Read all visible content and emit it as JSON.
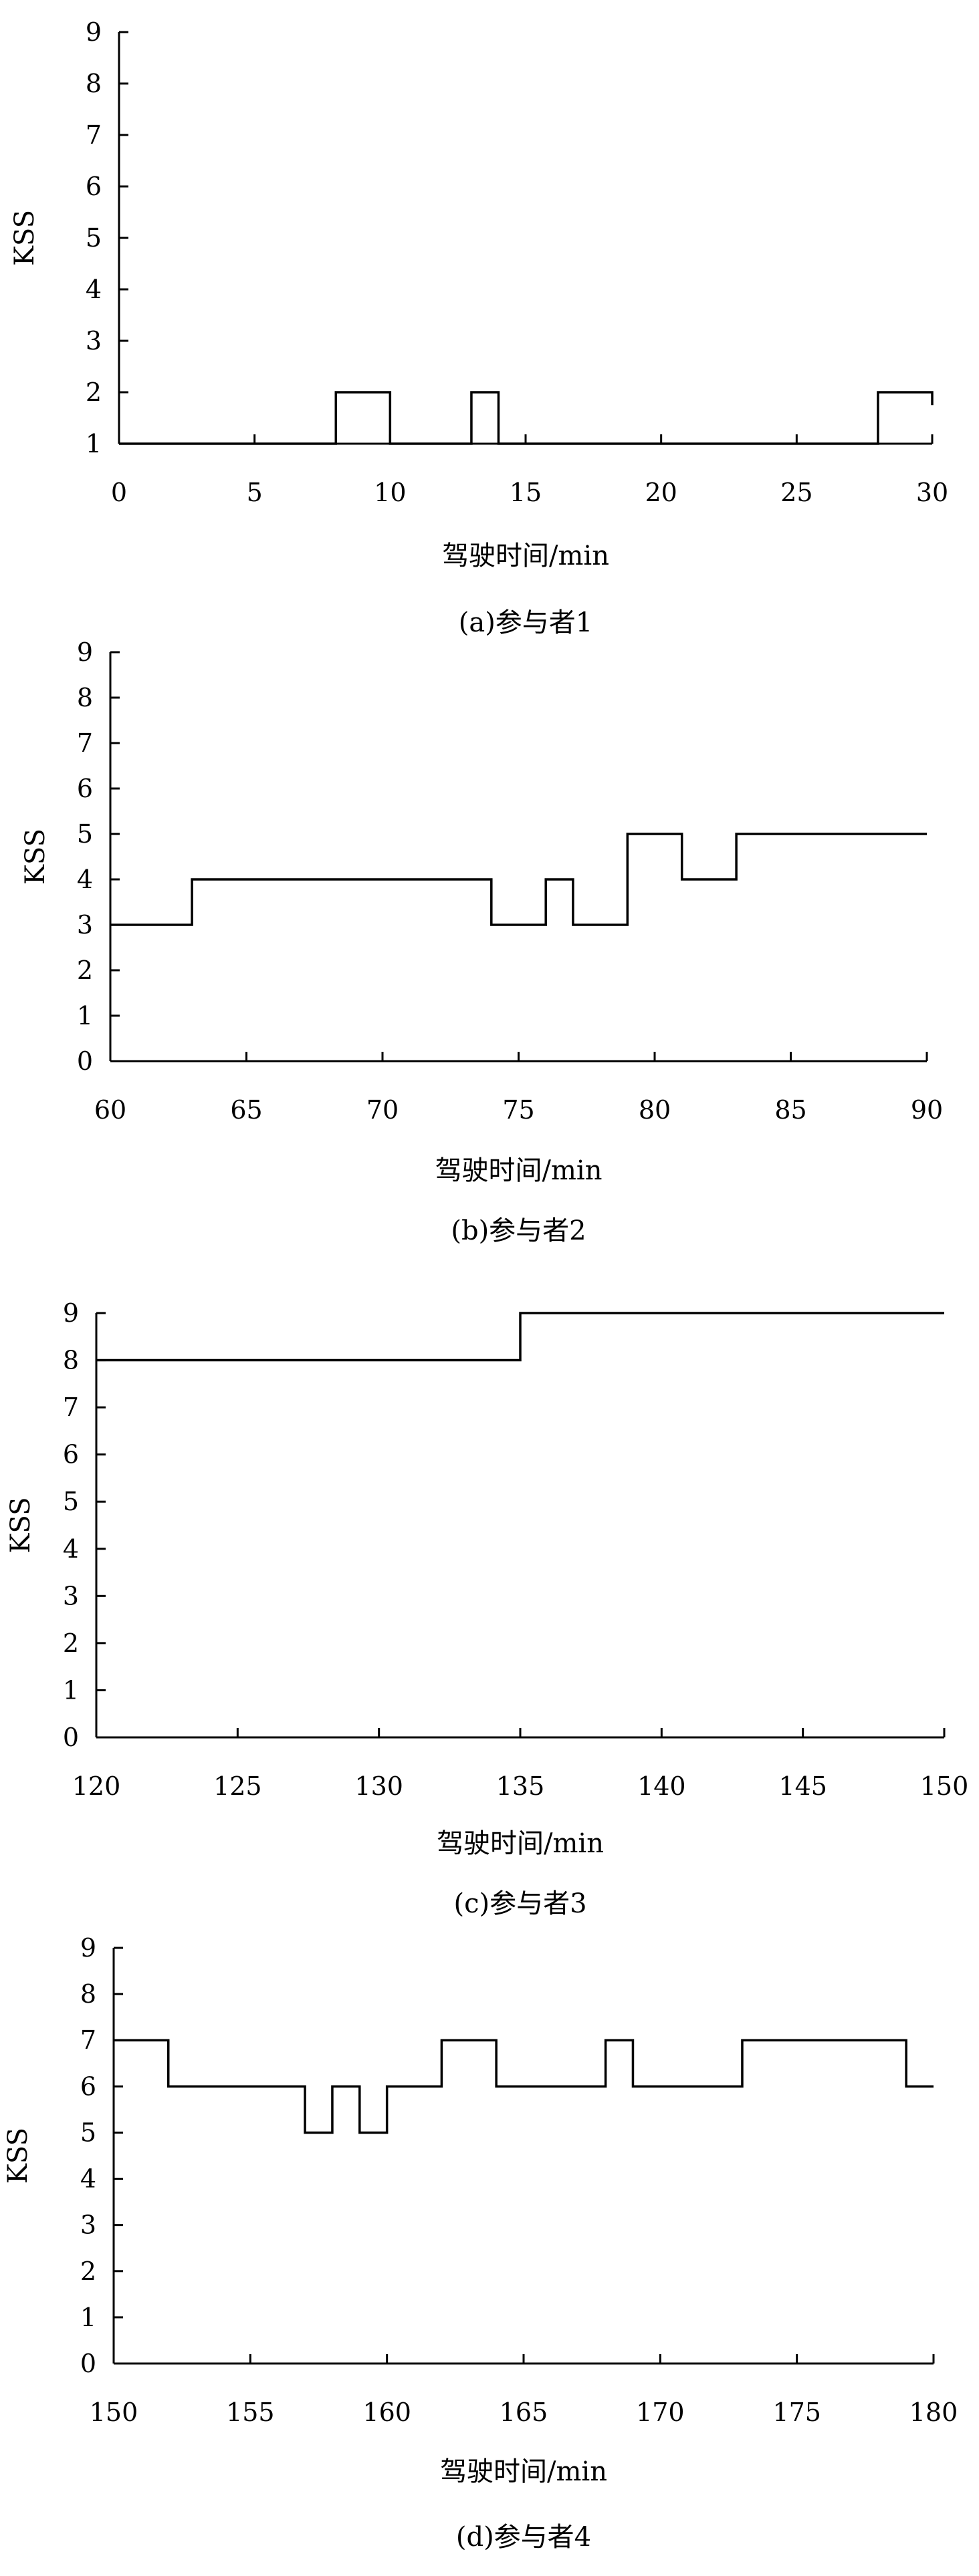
{
  "chart_data": [
    {
      "type": "line",
      "line_style": "step",
      "caption": "(a)参与者1",
      "xlabel": "驾驶时间/min",
      "ylabel": "KSS",
      "xlim": [
        0,
        30
      ],
      "ylim": [
        1,
        9
      ],
      "xticks": [
        0,
        5,
        10,
        15,
        20,
        25,
        30
      ],
      "yticks": [
        1,
        2,
        3,
        4,
        5,
        6,
        7,
        8,
        9
      ],
      "grid": false,
      "series": [
        {
          "x": [
            0,
            8,
            10,
            13,
            14,
            28,
            30
          ],
          "y": [
            1,
            2,
            1,
            2,
            1,
            2,
            2
          ]
        }
      ]
    },
    {
      "type": "line",
      "line_style": "step",
      "caption": "(b)参与者2",
      "xlabel": "驾驶时间/min",
      "ylabel": "KSS",
      "xlim": [
        60,
        90
      ],
      "ylim": [
        0,
        9
      ],
      "xticks": [
        60,
        65,
        70,
        75,
        80,
        85,
        90
      ],
      "yticks": [
        0,
        1,
        2,
        3,
        4,
        5,
        6,
        7,
        8,
        9
      ],
      "grid": false,
      "series": [
        {
          "x": [
            60,
            63,
            74,
            76,
            77,
            79,
            81,
            83,
            90
          ],
          "y": [
            3,
            4,
            3,
            4,
            3,
            5,
            4,
            5,
            5
          ]
        }
      ]
    },
    {
      "type": "line",
      "line_style": "step",
      "caption": "(c)参与者3",
      "xlabel": "驾驶时间/min",
      "ylabel": "KSS",
      "xlim": [
        120,
        150
      ],
      "ylim": [
        0,
        9
      ],
      "xticks": [
        120,
        125,
        130,
        135,
        140,
        145,
        150
      ],
      "yticks": [
        0,
        1,
        2,
        3,
        4,
        5,
        6,
        7,
        8,
        9
      ],
      "grid": false,
      "series": [
        {
          "x": [
            120,
            135,
            150
          ],
          "y": [
            8,
            9,
            9
          ]
        }
      ]
    },
    {
      "type": "line",
      "line_style": "step",
      "caption": "(d)参与者4",
      "xlabel": "驾驶时间/min",
      "ylabel": "KSS",
      "xlim": [
        150,
        180
      ],
      "ylim": [
        0,
        9
      ],
      "xticks": [
        150,
        155,
        160,
        165,
        170,
        175,
        180
      ],
      "yticks": [
        0,
        1,
        2,
        3,
        4,
        5,
        6,
        7,
        8,
        9
      ],
      "grid": false,
      "series": [
        {
          "x": [
            150,
            152,
            157,
            158,
            159,
            160,
            162,
            164,
            168,
            169,
            173,
            179,
            180
          ],
          "y": [
            7,
            6,
            5,
            6,
            5,
            6,
            7,
            6,
            7,
            6,
            7,
            6,
            6
          ]
        }
      ]
    }
  ]
}
